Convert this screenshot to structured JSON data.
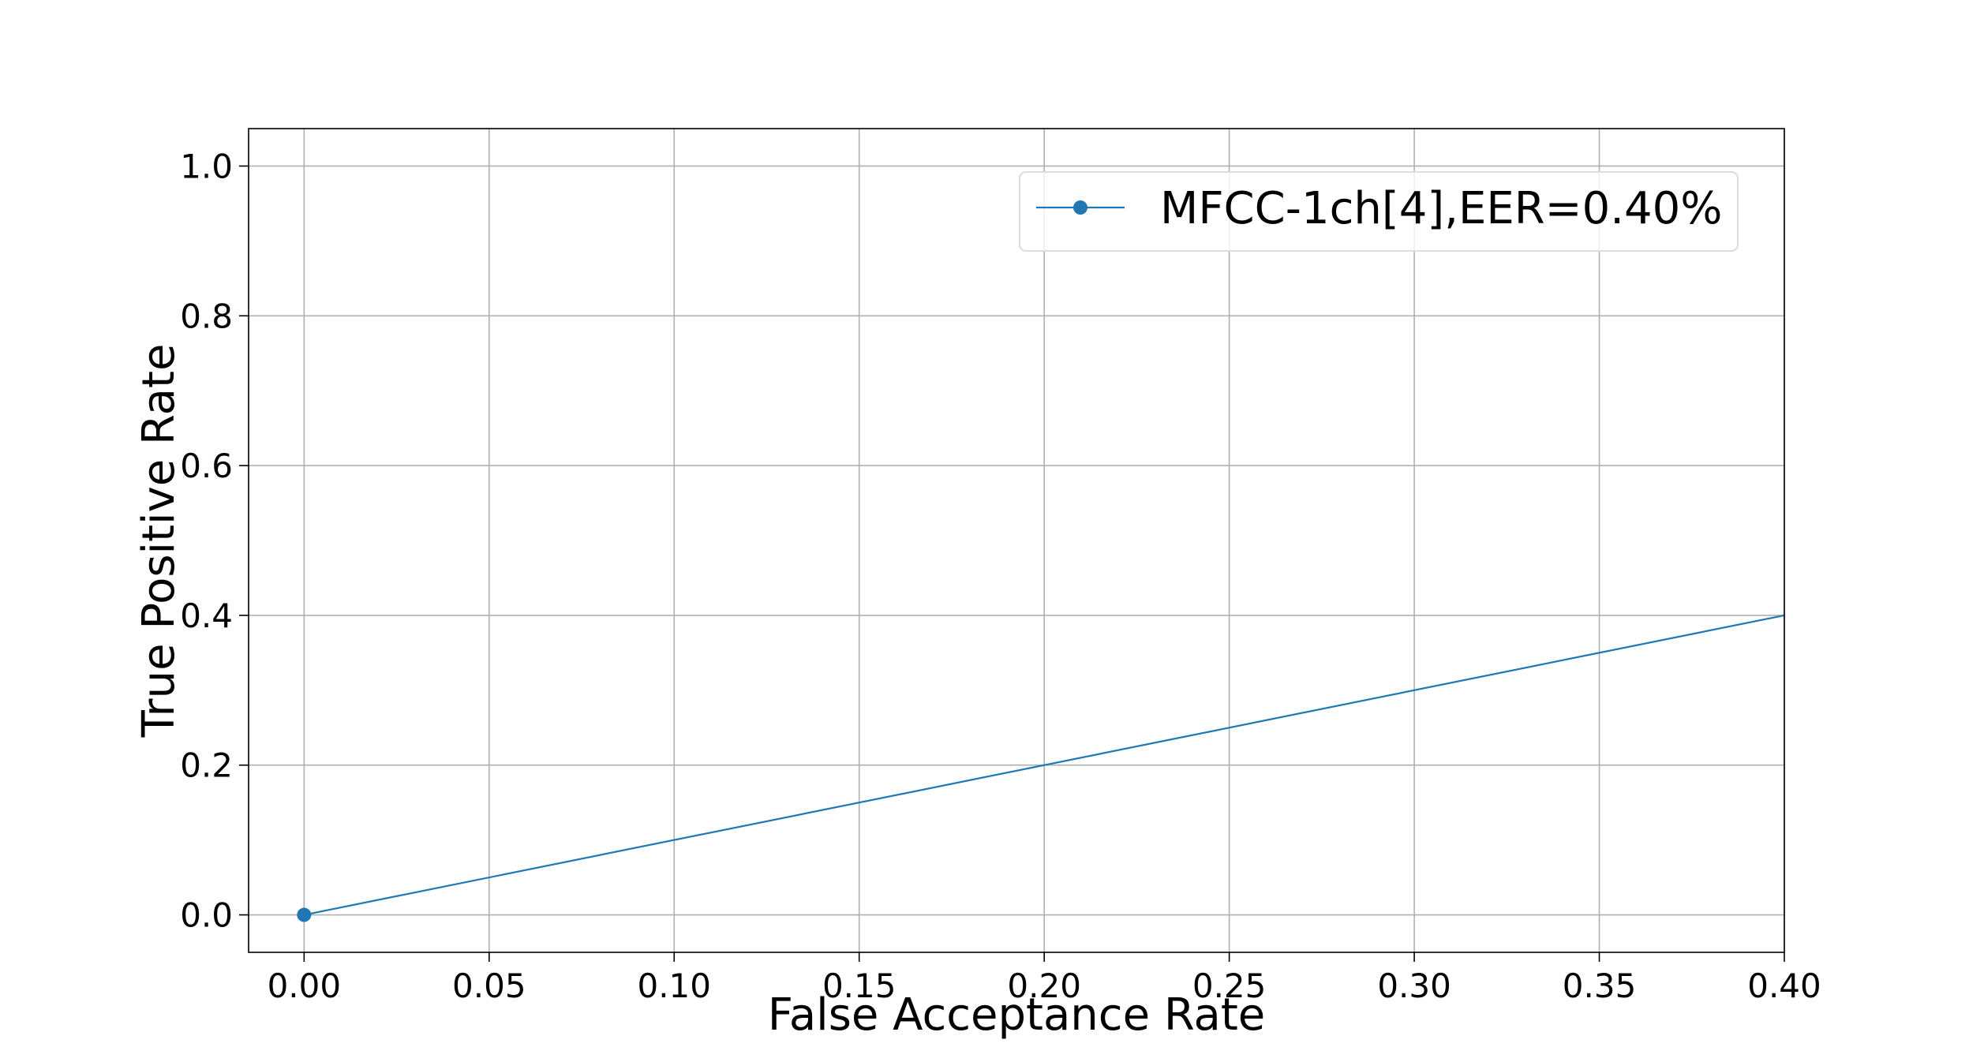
{
  "chart_data": {
    "type": "line",
    "title": "",
    "xlabel": "False Acceptance Rate",
    "ylabel": "True Positive Rate",
    "xlim": [
      -0.015,
      0.4
    ],
    "ylim": [
      -0.05,
      1.05
    ],
    "xticks": [
      0.0,
      0.05,
      0.1,
      0.15,
      0.2,
      0.25,
      0.3,
      0.35,
      0.4
    ],
    "xtick_labels": [
      "0.00",
      "0.05",
      "0.10",
      "0.15",
      "0.20",
      "0.25",
      "0.30",
      "0.35",
      "0.40"
    ],
    "yticks": [
      0.0,
      0.2,
      0.4,
      0.6,
      0.8,
      1.0
    ],
    "ytick_labels": [
      "0.0",
      "0.2",
      "0.4",
      "0.6",
      "0.8",
      "1.0"
    ],
    "grid": true,
    "legend_position": "top-right",
    "series": [
      {
        "name": "MFCC-1ch[4],EER=0.40%",
        "color": "#1f77b4",
        "x": [
          0.0,
          0.4
        ],
        "y": [
          0.0,
          0.4
        ],
        "marker_points": [
          0
        ]
      }
    ]
  }
}
